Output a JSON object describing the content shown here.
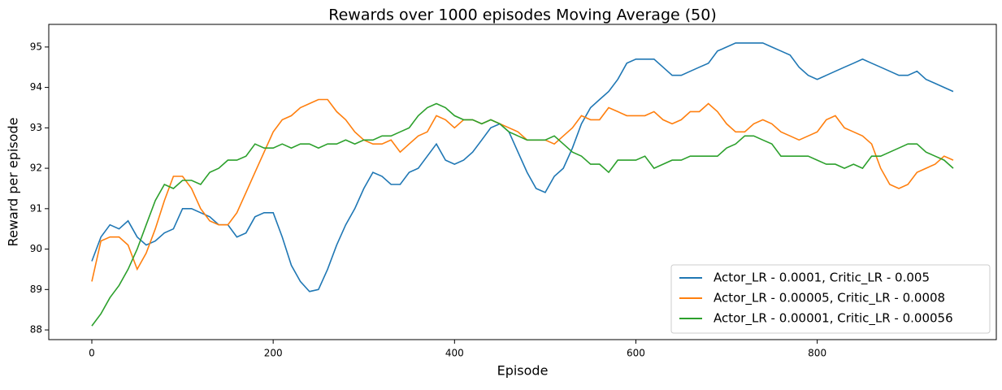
{
  "chart_data": {
    "type": "line",
    "title": "Rewards over 1000 episodes Moving Average (50)",
    "xlabel": "Episode",
    "ylabel": "Reward per episode",
    "x": [
      0,
      10,
      20,
      30,
      40,
      50,
      60,
      70,
      80,
      90,
      100,
      110,
      120,
      130,
      140,
      150,
      160,
      170,
      180,
      190,
      200,
      210,
      220,
      230,
      240,
      250,
      260,
      270,
      280,
      290,
      300,
      310,
      320,
      330,
      340,
      350,
      360,
      370,
      380,
      390,
      400,
      410,
      420,
      430,
      440,
      450,
      460,
      470,
      480,
      490,
      500,
      510,
      520,
      530,
      540,
      550,
      560,
      570,
      580,
      590,
      600,
      610,
      620,
      630,
      640,
      650,
      660,
      670,
      680,
      690,
      700,
      710,
      720,
      730,
      740,
      750,
      760,
      770,
      780,
      790,
      800,
      810,
      820,
      830,
      840,
      850,
      860,
      870,
      880,
      890,
      900,
      910,
      920,
      930,
      940,
      950
    ],
    "series": [
      {
        "name": "Actor_LR - 0.0001, Critic_LR - 0.005",
        "color": "#1f77b4",
        "values": [
          89.7,
          90.3,
          90.6,
          90.5,
          90.7,
          90.3,
          90.1,
          90.2,
          90.4,
          90.5,
          91.0,
          91.0,
          90.9,
          90.8,
          90.6,
          90.6,
          90.3,
          90.4,
          90.8,
          90.9,
          90.9,
          90.3,
          89.6,
          89.2,
          88.95,
          89.0,
          89.5,
          90.1,
          90.6,
          91.0,
          91.5,
          91.9,
          91.8,
          91.6,
          91.6,
          91.9,
          92.0,
          92.3,
          92.6,
          92.2,
          92.1,
          92.2,
          92.4,
          92.7,
          93.0,
          93.1,
          92.9,
          92.4,
          91.9,
          91.5,
          91.4,
          91.8,
          92.0,
          92.5,
          93.1,
          93.5,
          93.7,
          93.9,
          94.2,
          94.6,
          94.7,
          94.7,
          94.7,
          94.5,
          94.3,
          94.3,
          94.4,
          94.5,
          94.6,
          94.9,
          95.0,
          95.1,
          95.1,
          95.1,
          95.1,
          95.0,
          94.9,
          94.8,
          94.5,
          94.3,
          94.2,
          94.3,
          94.4,
          94.5,
          94.6,
          94.7,
          94.6,
          94.5,
          94.4,
          94.3,
          94.3,
          94.4,
          94.2,
          94.1,
          94.0,
          93.9
        ]
      },
      {
        "name": "Actor_LR - 0.00005, Critic_LR - 0.0008",
        "color": "#ff7f0e",
        "values": [
          89.2,
          90.2,
          90.3,
          90.3,
          90.1,
          89.5,
          89.9,
          90.5,
          91.2,
          91.8,
          91.8,
          91.5,
          91.0,
          90.7,
          90.6,
          90.6,
          90.9,
          91.4,
          91.9,
          92.4,
          92.9,
          93.2,
          93.3,
          93.5,
          93.6,
          93.7,
          93.7,
          93.4,
          93.2,
          92.9,
          92.7,
          92.6,
          92.6,
          92.7,
          92.4,
          92.6,
          92.8,
          92.9,
          93.3,
          93.2,
          93.0,
          93.2,
          93.2,
          93.1,
          93.2,
          93.1,
          93.0,
          92.9,
          92.7,
          92.7,
          92.7,
          92.6,
          92.8,
          93.0,
          93.3,
          93.2,
          93.2,
          93.5,
          93.4,
          93.3,
          93.3,
          93.3,
          93.4,
          93.2,
          93.1,
          93.2,
          93.4,
          93.4,
          93.6,
          93.4,
          93.1,
          92.9,
          92.9,
          93.1,
          93.2,
          93.1,
          92.9,
          92.8,
          92.7,
          92.8,
          92.9,
          93.2,
          93.3,
          93.0,
          92.9,
          92.8,
          92.6,
          92.0,
          91.6,
          91.5,
          91.6,
          91.9,
          92.0,
          92.1,
          92.3,
          92.2
        ]
      },
      {
        "name": "Actor_LR - 0.00001, Critic_LR - 0.00056",
        "color": "#2ca02c",
        "values": [
          88.1,
          88.4,
          88.8,
          89.1,
          89.5,
          90.0,
          90.6,
          91.2,
          91.6,
          91.5,
          91.7,
          91.7,
          91.6,
          91.9,
          92.0,
          92.2,
          92.2,
          92.3,
          92.6,
          92.5,
          92.5,
          92.6,
          92.5,
          92.6,
          92.6,
          92.5,
          92.6,
          92.6,
          92.7,
          92.6,
          92.7,
          92.7,
          92.8,
          92.8,
          92.9,
          93.0,
          93.3,
          93.5,
          93.6,
          93.5,
          93.3,
          93.2,
          93.2,
          93.1,
          93.2,
          93.1,
          92.9,
          92.8,
          92.7,
          92.7,
          92.7,
          92.8,
          92.6,
          92.4,
          92.3,
          92.1,
          92.1,
          91.9,
          92.2,
          92.2,
          92.2,
          92.3,
          92.0,
          92.1,
          92.2,
          92.2,
          92.3,
          92.3,
          92.3,
          92.3,
          92.5,
          92.6,
          92.8,
          92.8,
          92.7,
          92.6,
          92.3,
          92.3,
          92.3,
          92.3,
          92.2,
          92.1,
          92.1,
          92.0,
          92.1,
          92.0,
          92.3,
          92.3,
          92.4,
          92.5,
          92.6,
          92.6,
          92.4,
          92.3,
          92.2,
          92.0
        ]
      }
    ],
    "xlim": [
      -47.5,
      997.5
    ],
    "ylim": [
      87.76,
      95.56
    ],
    "xticks": [
      0,
      200,
      400,
      600,
      800
    ],
    "yticks": [
      88,
      89,
      90,
      91,
      92,
      93,
      94,
      95
    ],
    "legend": "lower right"
  }
}
